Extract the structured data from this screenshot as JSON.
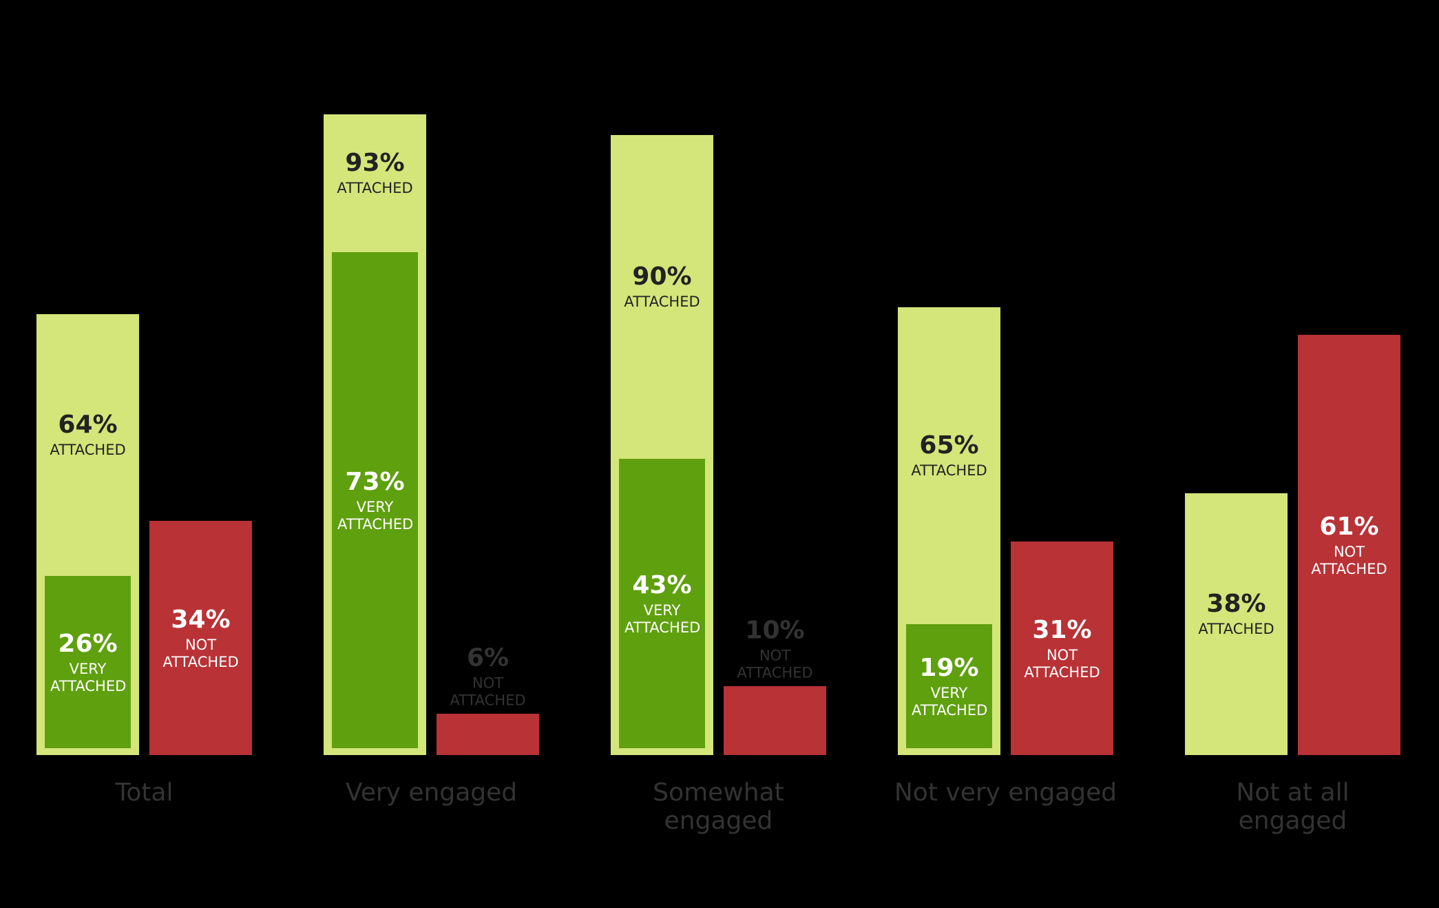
{
  "chart_data": {
    "type": "bar",
    "categories": [
      "Total",
      "Very engaged",
      "Somewhat engaged",
      "Not very engaged",
      "Not at all engaged"
    ],
    "series": [
      {
        "name": "ATTACHED",
        "color": "#d4e57a",
        "values": [
          64,
          93,
          90,
          65,
          38
        ],
        "value_labels": [
          "64%",
          "93%",
          "90%",
          "65%",
          "38%"
        ]
      },
      {
        "name": "VERY ATTACHED",
        "color": "#5fa00e",
        "values": [
          26,
          73,
          43,
          19,
          null
        ],
        "value_labels": [
          "26%",
          "73%",
          "43%",
          "19%",
          null
        ]
      },
      {
        "name": "NOT ATTACHED",
        "color": "#b83236",
        "values": [
          34,
          6,
          10,
          31,
          61
        ],
        "value_labels": [
          "34%",
          "6%",
          "10%",
          "31%",
          "61%"
        ]
      }
    ]
  }
}
